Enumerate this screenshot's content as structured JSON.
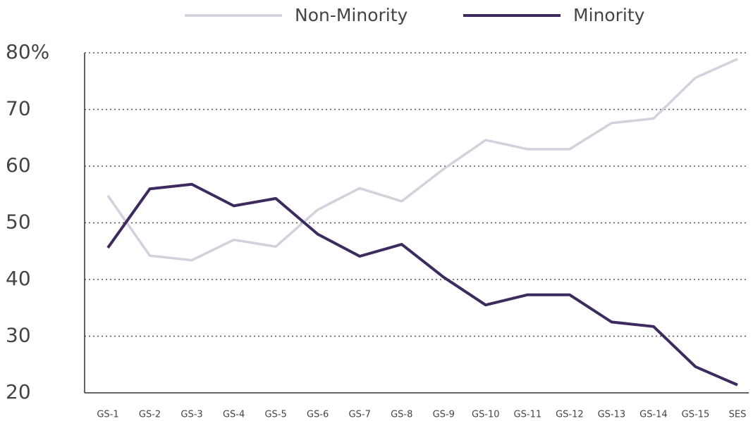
{
  "chart_data": {
    "type": "line",
    "categories": [
      "GS-1",
      "GS-2",
      "GS-3",
      "GS-4",
      "GS-5",
      "GS-6",
      "GS-7",
      "GS-8",
      "GS-9",
      "GS-10",
      "GS-11",
      "GS-12",
      "GS-13",
      "GS-14",
      "GS-15",
      "SES"
    ],
    "series": [
      {
        "name": "Non-Minority",
        "color": "#d3d1dc",
        "values": [
          54.8,
          44.2,
          43.4,
          47,
          45.8,
          52.3,
          56.1,
          53.8,
          59.5,
          64.6,
          63,
          63,
          67.6,
          68.4,
          75.6,
          78.9
        ]
      },
      {
        "name": "Minority",
        "color": "#3d2a5e",
        "values": [
          45.6,
          56,
          56.8,
          53,
          54.3,
          48,
          44.1,
          46.2,
          40.4,
          35.5,
          37.3,
          37.3,
          32.5,
          31.7,
          24.6,
          21.4
        ]
      }
    ],
    "ylim": [
      20,
      80
    ],
    "yticks": [
      20,
      30,
      40,
      50,
      60,
      70,
      {
        "value": 80,
        "label": "80%"
      }
    ],
    "grid": true,
    "legend": "top"
  }
}
